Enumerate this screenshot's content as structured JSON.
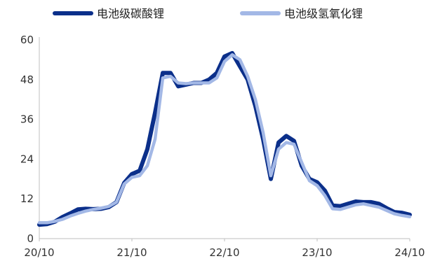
{
  "chart_data": {
    "type": "line",
    "title": "",
    "xlabel": "",
    "ylabel": "",
    "ylim": [
      0,
      60
    ],
    "yticks": [
      0,
      12,
      24,
      36,
      48,
      60
    ],
    "x_tick_labels": [
      "20/10",
      "21/10",
      "22/10",
      "23/10",
      "24/10"
    ],
    "x_range": [
      "2020-10",
      "2024-10"
    ],
    "grid": false,
    "legend_position": "top",
    "series": [
      {
        "name": "电池级碳酸锂",
        "color": "#0b2f8a",
        "x": [
          "2020-10",
          "2020-11",
          "2020-12",
          "2021-01",
          "2021-02",
          "2021-03",
          "2021-04",
          "2021-05",
          "2021-06",
          "2021-07",
          "2021-08",
          "2021-09",
          "2021-10",
          "2021-11",
          "2021-12",
          "2022-01",
          "2022-02",
          "2022-03",
          "2022-04",
          "2022-05",
          "2022-06",
          "2022-07",
          "2022-08",
          "2022-09",
          "2022-10",
          "2022-11",
          "2022-12",
          "2023-01",
          "2023-02",
          "2023-03",
          "2023-04",
          "2023-05",
          "2023-06",
          "2023-07",
          "2023-08",
          "2023-09",
          "2023-10",
          "2023-11",
          "2023-12",
          "2024-01",
          "2024-02",
          "2024-03",
          "2024-04",
          "2024-05",
          "2024-06",
          "2024-07",
          "2024-08",
          "2024-09",
          "2024-10"
        ],
        "values": [
          4.2,
          4.4,
          5.1,
          6.5,
          7.6,
          8.8,
          9.0,
          8.9,
          9.0,
          9.5,
          11.0,
          16.8,
          19.5,
          20.5,
          27.0,
          38.0,
          50.0,
          50.0,
          46.0,
          46.5,
          47.0,
          47.0,
          48.0,
          50.0,
          55.0,
          56.0,
          52.0,
          48.0,
          40.0,
          30.0,
          18.0,
          29.0,
          31.0,
          29.5,
          22.0,
          18.0,
          17.0,
          14.5,
          10.0,
          9.8,
          10.5,
          11.2,
          11.0,
          11.0,
          10.5,
          9.2,
          8.0,
          7.8,
          7.2
        ]
      },
      {
        "name": "电池级氢氧化锂",
        "color": "#a3b8e6",
        "x": [
          "2020-10",
          "2020-11",
          "2020-12",
          "2021-01",
          "2021-02",
          "2021-03",
          "2021-04",
          "2021-05",
          "2021-06",
          "2021-07",
          "2021-08",
          "2021-09",
          "2021-10",
          "2021-11",
          "2021-12",
          "2022-01",
          "2022-02",
          "2022-03",
          "2022-04",
          "2022-05",
          "2022-06",
          "2022-07",
          "2022-08",
          "2022-09",
          "2022-10",
          "2022-11",
          "2022-12",
          "2023-01",
          "2023-02",
          "2023-03",
          "2023-04",
          "2023-05",
          "2023-06",
          "2023-07",
          "2023-08",
          "2023-09",
          "2023-10",
          "2023-11",
          "2023-12",
          "2024-01",
          "2024-02",
          "2024-03",
          "2024-04",
          "2024-05",
          "2024-06",
          "2024-07",
          "2024-08",
          "2024-09",
          "2024-10"
        ],
        "values": [
          4.8,
          4.8,
          5.2,
          5.8,
          6.8,
          7.6,
          8.3,
          8.8,
          9.2,
          9.7,
          11.0,
          16.5,
          18.5,
          19.0,
          22.0,
          30.0,
          48.5,
          49.0,
          47.0,
          46.8,
          47.0,
          47.0,
          47.0,
          48.5,
          53.5,
          55.5,
          54.0,
          49.0,
          42.0,
          32.0,
          19.0,
          27.0,
          29.0,
          28.5,
          23.0,
          17.5,
          16.0,
          13.0,
          9.0,
          8.8,
          9.5,
          10.2,
          10.5,
          10.0,
          9.5,
          8.5,
          7.5,
          7.0,
          6.6
        ]
      }
    ]
  }
}
